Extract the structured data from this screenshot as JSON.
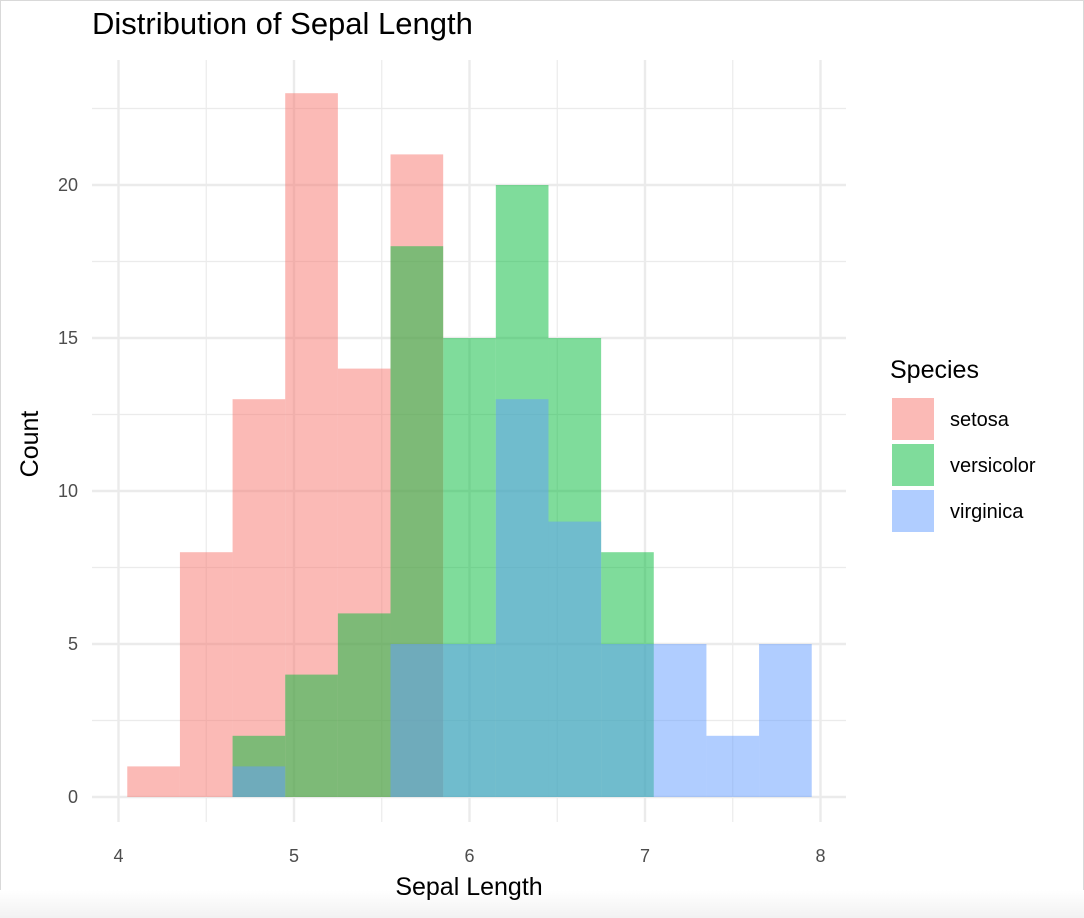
{
  "chart_data": {
    "type": "bar",
    "subtype": "overlapping histogram",
    "title": "Distribution of Sepal Length",
    "xlabel": "Sepal Length",
    "ylabel": "Count",
    "xlim": [
      4,
      8
    ],
    "ylim": [
      0,
      23
    ],
    "x_ticks": [
      "4",
      "5",
      "6",
      "7",
      "8"
    ],
    "y_ticks": [
      "0",
      "5",
      "10",
      "15",
      "20"
    ],
    "bins": [
      [
        4.05,
        4.35
      ],
      [
        4.35,
        4.65
      ],
      [
        4.65,
        4.95
      ],
      [
        4.95,
        5.25
      ],
      [
        5.25,
        5.55
      ],
      [
        5.55,
        5.85
      ],
      [
        5.85,
        6.15
      ],
      [
        6.15,
        6.45
      ],
      [
        6.45,
        6.75
      ],
      [
        6.75,
        7.05
      ],
      [
        7.05,
        7.35
      ],
      [
        7.35,
        7.65
      ],
      [
        7.65,
        7.95
      ]
    ],
    "series": [
      {
        "name": "setosa",
        "color": "#F8766D",
        "values": [
          1,
          8,
          13,
          23,
          14,
          21,
          0,
          0,
          0,
          0,
          0,
          0,
          0
        ]
      },
      {
        "name": "versicolor",
        "color": "#00BA38",
        "values": [
          0,
          0,
          2,
          4,
          6,
          18,
          15,
          20,
          15,
          8,
          0,
          0,
          0
        ]
      },
      {
        "name": "virginica",
        "color": "#619CFF",
        "values": [
          0,
          0,
          1,
          0,
          0,
          5,
          5,
          13,
          9,
          5,
          5,
          2,
          5
        ]
      }
    ],
    "grid": true,
    "legend": {
      "title": "Species",
      "position": "right"
    }
  }
}
